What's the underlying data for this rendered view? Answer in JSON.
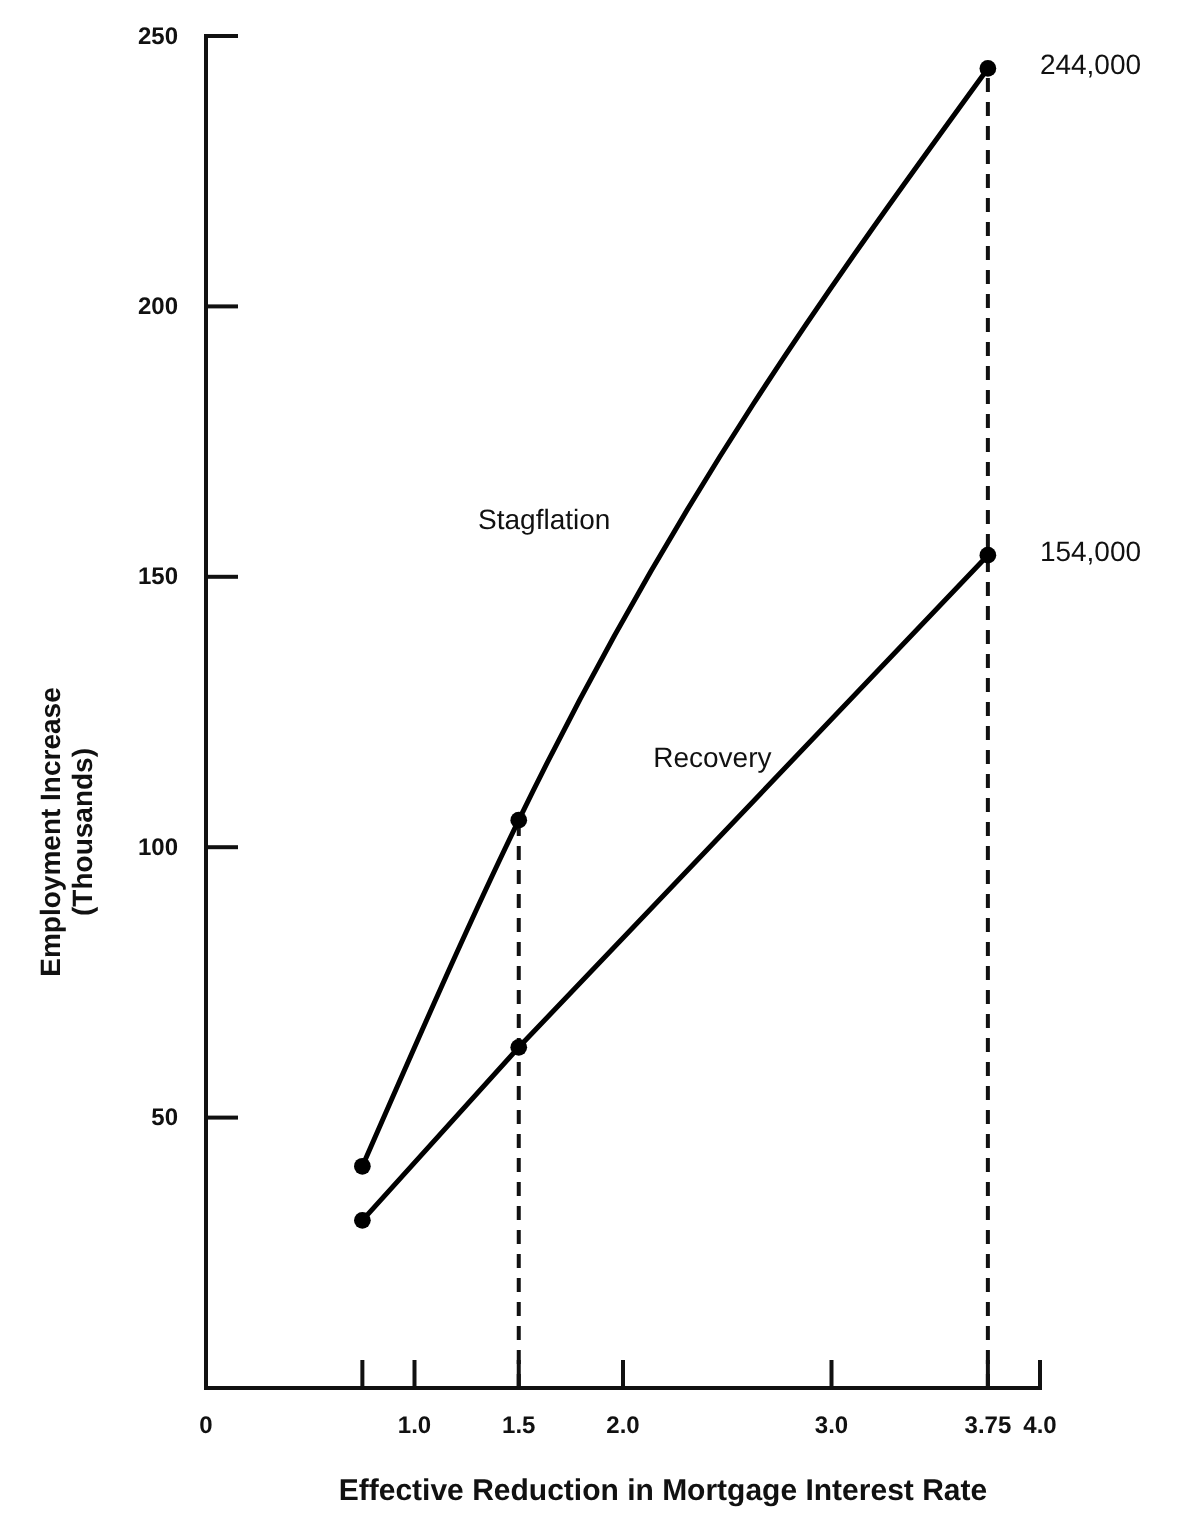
{
  "chart_data": {
    "type": "line",
    "xlabel": "Effective Reduction in Mortgage Interest Rate",
    "ylabel": "Employment Increase\n(Thousands)",
    "x": [
      0.75,
      1.5,
      3.75
    ],
    "series": [
      {
        "name": "Stagflation",
        "color": "#000000",
        "values": [
          41,
          105,
          244
        ]
      },
      {
        "name": "Recovery",
        "color": "#000000",
        "values": [
          31,
          63,
          154
        ]
      }
    ],
    "annotations": [
      {
        "text": "244,000",
        "x": 3.75,
        "y": 244
      },
      {
        "text": "154,000",
        "x": 3.75,
        "y": 154
      }
    ],
    "xlim": [
      0,
      4.0
    ],
    "xticks": [
      {
        "value": 0,
        "label": "0"
      },
      {
        "value": 0.75,
        "label": null
      },
      {
        "value": 1,
        "label": "1.0"
      },
      1.5,
      {
        "value": 2,
        "label": "2.0"
      },
      {
        "value": 3,
        "label": "3.0"
      },
      3.75,
      {
        "value": 4,
        "label": "4.0"
      }
    ],
    "ylim": [
      0,
      250
    ],
    "yticks": [
      50,
      100,
      150,
      200,
      250
    ],
    "ref_lines": [
      {
        "axis": "x",
        "value": 1.5,
        "line_style": "dashed"
      },
      {
        "axis": "x",
        "value": 3.75,
        "line_style": "dashed"
      }
    ],
    "marker": "circle",
    "line_style": "solid",
    "grid": false,
    "legend": false
  }
}
